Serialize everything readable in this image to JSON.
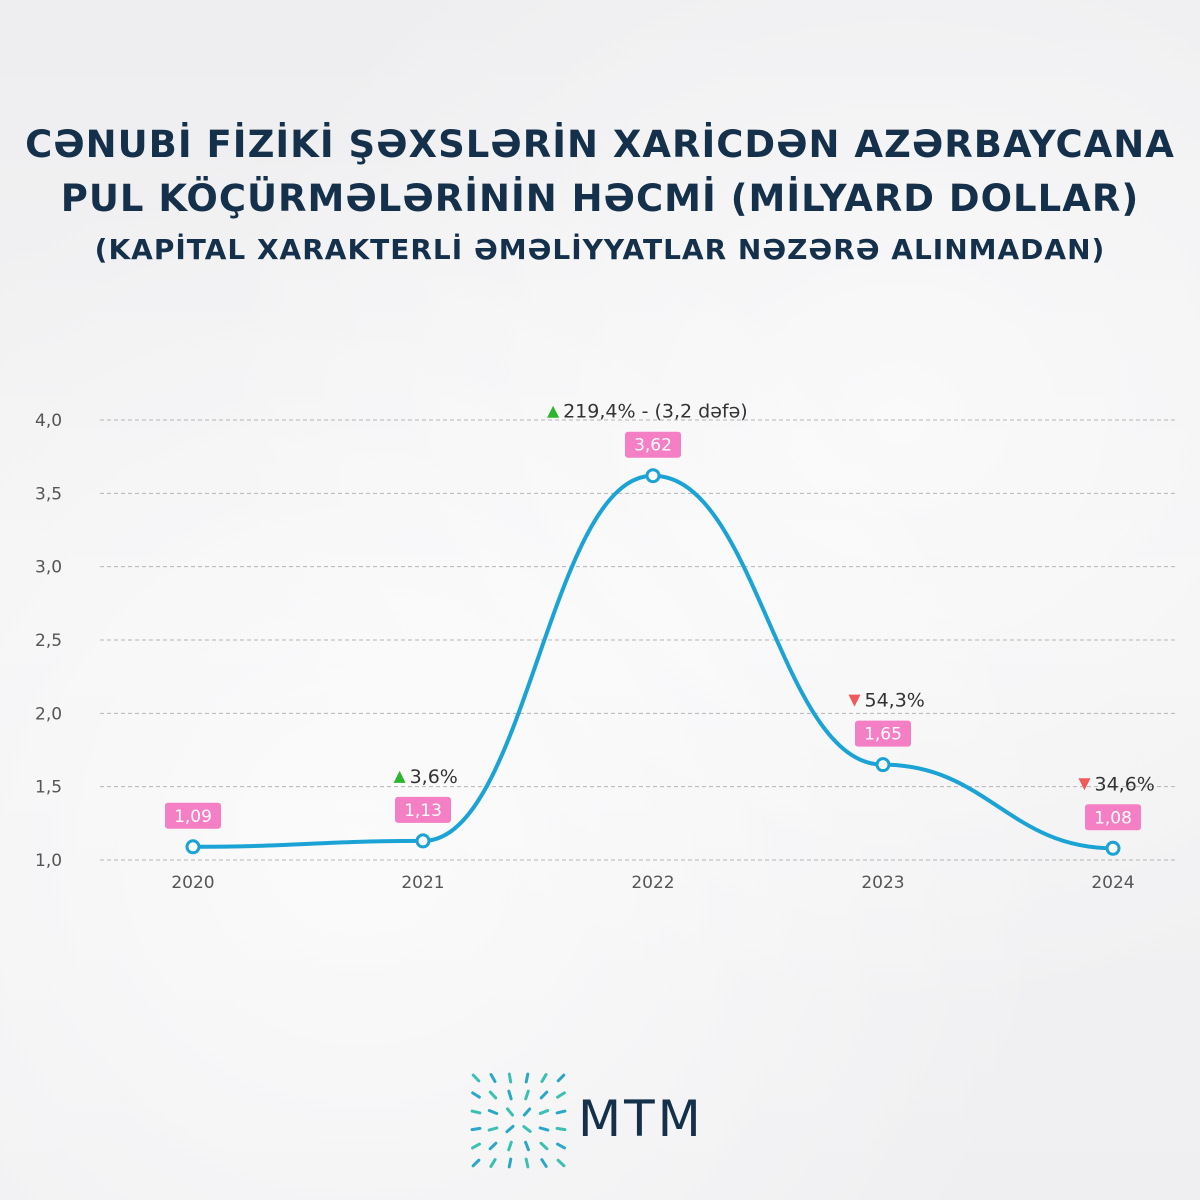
{
  "title": {
    "line1": "ƏNUBİ FİZİKİ ŞƏXSLƏRİN XARİCDƏN AZƏRBAYCANA",
    "line1_full": "CƏNUBİ FİZİKİ ŞƏXSLƏRİN XARİCDƏN AZƏRBAYCANA",
    "line2": "PUL KÖÇÜRMƏLƏRİNİN HƏCMİ (MİLYARD DOLLAR)",
    "subtitle": "(KAPİTAL XARAKTERLİ ƏMƏLİYYATLAR NƏZƏRƏ ALINMADAN)"
  },
  "colors": {
    "line": "#1aa3d4",
    "label_bg": "#f47fc4",
    "label_text": "#ffffff",
    "up": "#2db52d",
    "down": "#f05a5a",
    "grid": "#b5b5b5",
    "axis_text": "#555555",
    "title": "#14304a"
  },
  "chart_data": {
    "type": "line",
    "x": [
      "2020",
      "2021",
      "2022",
      "2023",
      "2024"
    ],
    "series": [
      {
        "values": [
          1.09,
          1.13,
          3.62,
          1.65,
          1.08
        ]
      }
    ],
    "data_labels": [
      "1,09",
      "1,13",
      "3,62",
      "1,65",
      "1,08"
    ],
    "y_ticks": [
      "1,0",
      "1,5",
      "2,0",
      "2,5",
      "3,0",
      "3,5",
      "4,0"
    ],
    "ylim": [
      1.0,
      4.0
    ],
    "grid": true,
    "annotations": [
      {
        "x": "2021",
        "direction": "up",
        "text": "3,6%"
      },
      {
        "x": "2022",
        "direction": "up",
        "text": "219,4% - (3,2 dəfə)"
      },
      {
        "x": "2023",
        "direction": "down",
        "text": "54,3%"
      },
      {
        "x": "2024",
        "direction": "down",
        "text": "34,6%"
      }
    ]
  },
  "logo": {
    "text": "MTM"
  }
}
